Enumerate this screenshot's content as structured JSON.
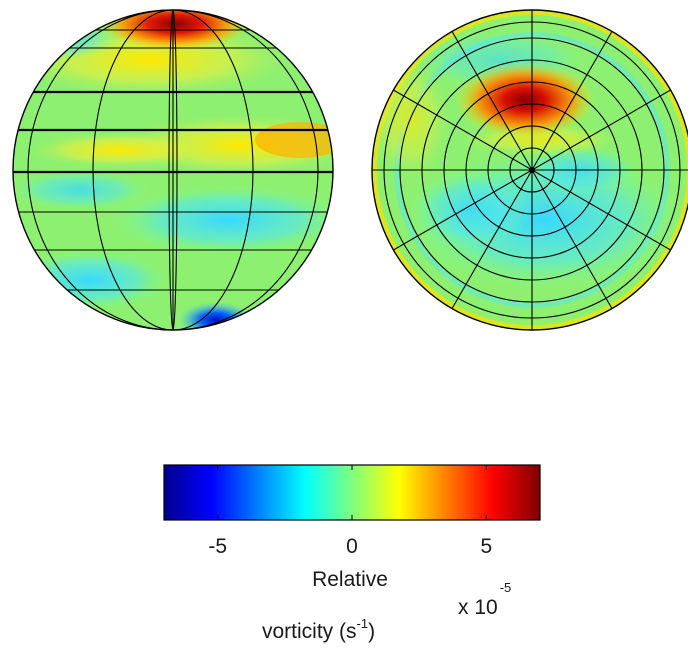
{
  "globe_left": {
    "view": "equatorial"
  },
  "globe_right": {
    "view": "polar"
  },
  "colorbar": {
    "ticks": [
      {
        "label": "-5",
        "value": -5
      },
      {
        "label": "0",
        "value": 0
      },
      {
        "label": "5",
        "value": 5
      }
    ],
    "range": [
      -7,
      7
    ],
    "colormap": "jet",
    "label_line1": "Relative",
    "label_line2_prefix": "vorticity (s",
    "label_line2_exp": "-1",
    "label_line2_suffix": ")",
    "scale_prefix": "x 10",
    "scale_exp": "-5"
  }
}
